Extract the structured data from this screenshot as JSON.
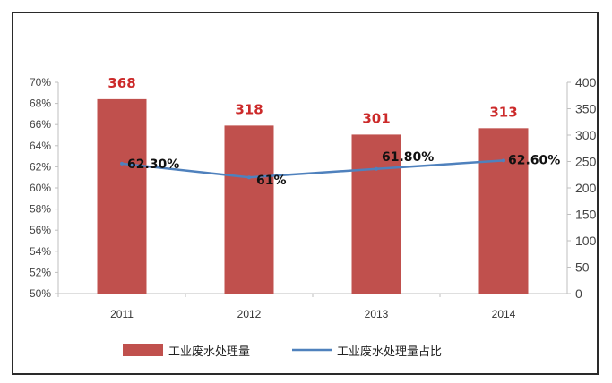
{
  "chart_data": {
    "type": "bar",
    "categories": [
      "2011",
      "2012",
      "2013",
      "2014"
    ],
    "series": [
      {
        "name": "工业废水处理量",
        "type": "bar",
        "axis": "right",
        "values": [
          368,
          318,
          301,
          313
        ],
        "labels": [
          "368",
          "318",
          "301",
          "313"
        ],
        "color": "#c0504d"
      },
      {
        "name": "工业废水处理量占比",
        "type": "line",
        "axis": "left",
        "values": [
          62.3,
          61.0,
          61.8,
          62.6
        ],
        "labels": [
          "62.30%",
          "61%",
          "61.80%",
          "62.60%"
        ],
        "color": "#4f81bd"
      }
    ],
    "y_left": {
      "ylim": [
        50,
        70
      ],
      "ticks": [
        "50%",
        "52%",
        "54%",
        "56%",
        "58%",
        "60%",
        "62%",
        "64%",
        "66%",
        "68%",
        "70%"
      ]
    },
    "y_right": {
      "ylim": [
        0,
        400
      ],
      "ticks": [
        "0",
        "50",
        "100",
        "150",
        "200",
        "250",
        "300",
        "350",
        "400"
      ]
    },
    "grid": false,
    "legend": "bottom"
  }
}
